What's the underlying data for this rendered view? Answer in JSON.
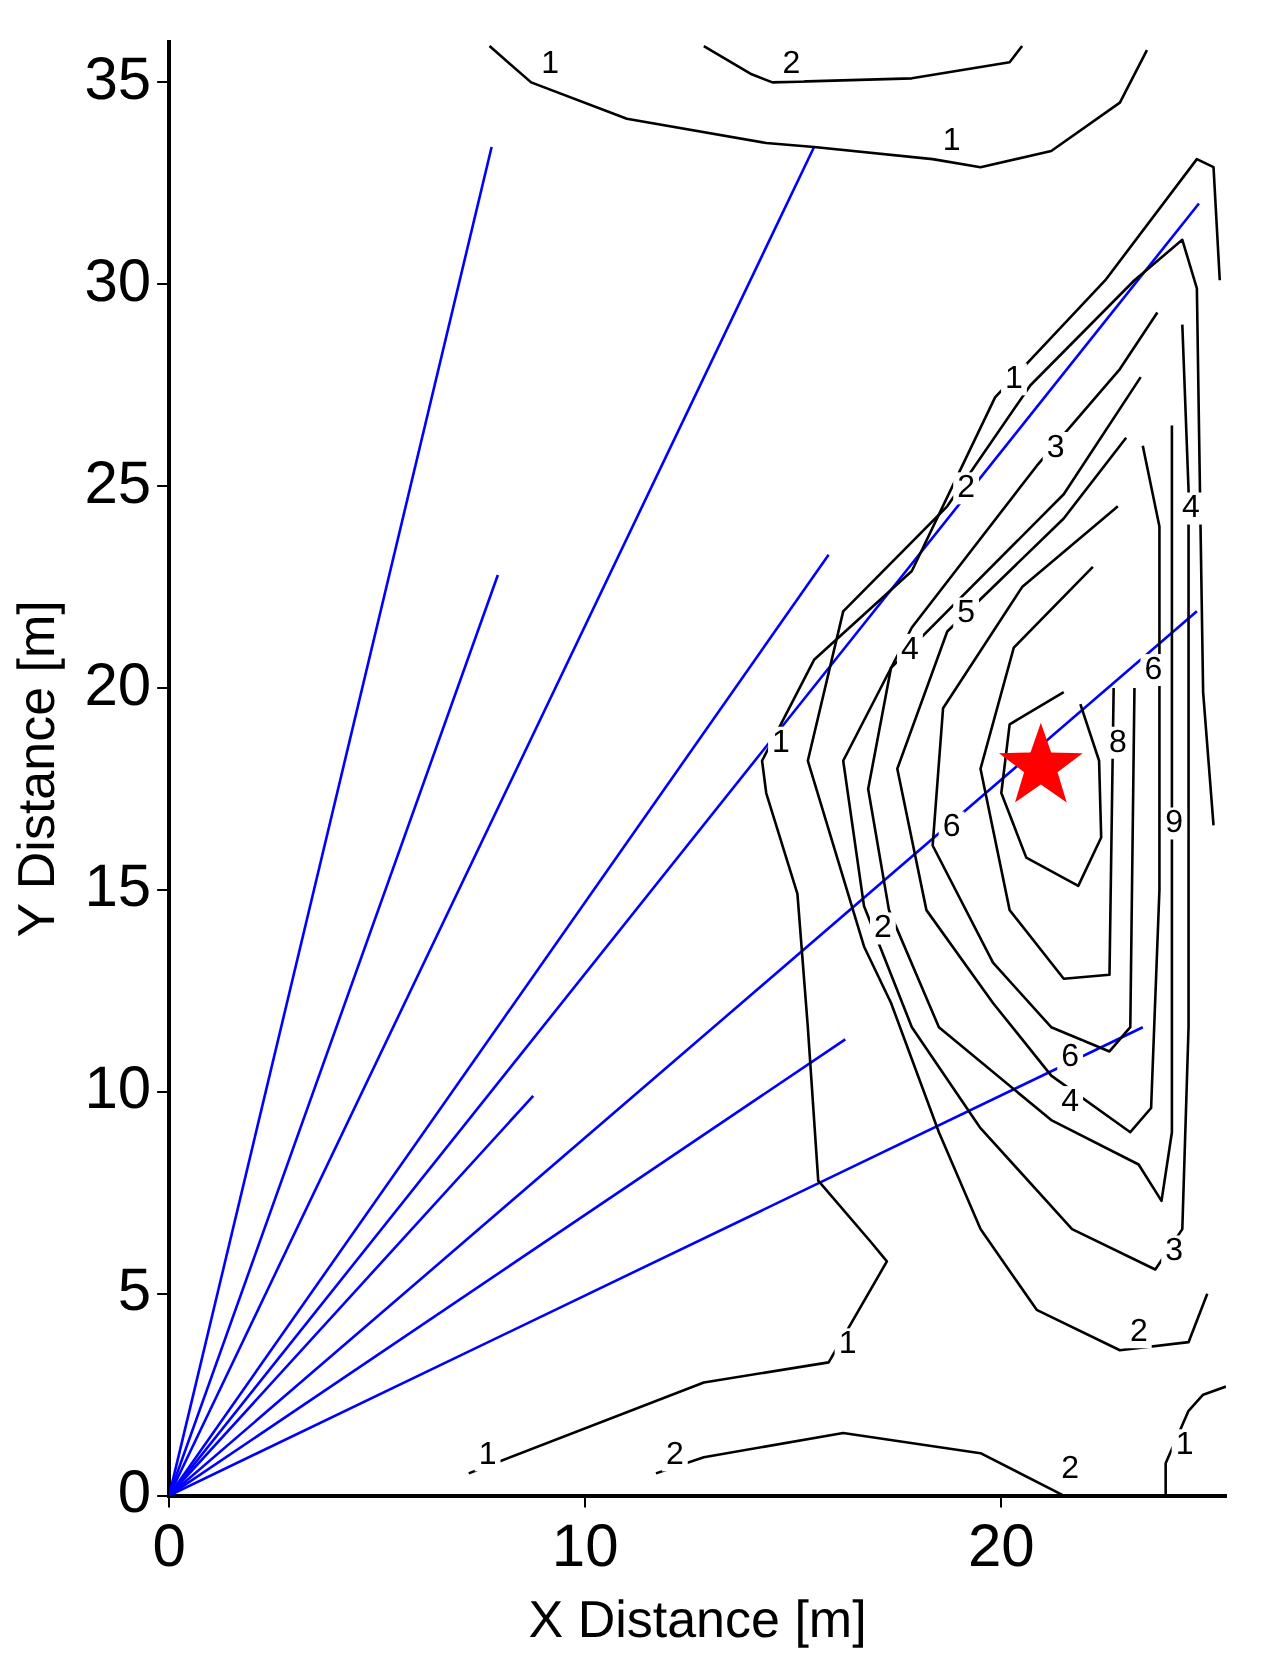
{
  "chart_data": {
    "type": "line",
    "xlabel": "X Distance [m]",
    "ylabel": "Y Distance [m]",
    "xlim": [
      0,
      25.4
    ],
    "ylim": [
      0,
      36
    ],
    "xticks": [
      0,
      10,
      20
    ],
    "yticks": [
      0,
      5,
      10,
      15,
      20,
      25,
      30,
      35
    ],
    "grid": false,
    "legend": false,
    "marker": "none",
    "series": [
      {
        "color": "#000000",
        "x": [
          7.2,
          12.85,
          15.85,
          17.25,
          16.85,
          15.6,
          15.35,
          15.1,
          14.35,
          14.25,
          15.5,
          17.85,
          19.85,
          22.5,
          24.7,
          25.1,
          25.25
        ],
        "values": [
          0.55,
          2.8,
          3.3,
          5.8,
          6.3,
          7.8,
          11.6,
          14.9,
          17.4,
          18.2,
          20.7,
          22.9,
          27.2,
          30.1,
          33.1,
          32.9,
          30.1
        ]
      },
      {
        "color": "#000000",
        "x": [
          23.95,
          23.95,
          24.5,
          24.85,
          25.4
        ],
        "values": [
          0,
          0.8,
          2.1,
          2.5,
          2.7
        ]
      },
      {
        "color": "#000000",
        "x": [
          7.7,
          8.7,
          11,
          14.35,
          15.5,
          18.35,
          19.5,
          21.2,
          22.85,
          23.5
        ],
        "values": [
          35.9,
          35,
          34.1,
          33.5,
          33.4,
          33.1,
          32.9,
          33.3,
          34.5,
          35.8
        ]
      },
      {
        "color": "#000000",
        "x": [
          12.85,
          14,
          14.5,
          17.85,
          20.2,
          20.5
        ],
        "values": [
          35.9,
          35.2,
          35,
          35.1,
          35.5,
          35.9
        ]
      },
      {
        "color": "#000000",
        "x": [
          11.7,
          12.85,
          16.2,
          19.5,
          21.5
        ],
        "values": [
          0.55,
          0.95,
          1.55,
          1.05,
          0
        ]
      },
      {
        "color": "#000000",
        "x": [
          25.1,
          24.85,
          24.75,
          24.7,
          24.35,
          23.2,
          20.7,
          18.7,
          16.2,
          15.35,
          16.7,
          17.35,
          18.5,
          19.5,
          20.85,
          22.85,
          24.5,
          24.95
        ],
        "values": [
          16.6,
          19.9,
          26.5,
          29.9,
          31.1,
          30.1,
          27.5,
          24.5,
          21.9,
          18.2,
          13.6,
          12.2,
          9,
          6.6,
          4.6,
          3.6,
          3.8,
          5
        ]
      },
      {
        "color": "#000000",
        "x": [
          23.75,
          22.85,
          20.85,
          17.85,
          16.2,
          16.7,
          17.85,
          19.5,
          21.7,
          23.7,
          24.35,
          24.5,
          24.5,
          24.35
        ],
        "values": [
          29.3,
          27.9,
          25.5,
          21.5,
          18.2,
          14.6,
          11.6,
          9.1,
          6.6,
          5.6,
          6.6,
          11.6,
          24.9,
          29
        ]
      },
      {
        "color": "#000000",
        "x": [
          23.35,
          21.5,
          17.35,
          16.8,
          17.3,
          18.5,
          21.2,
          23.3,
          23.85,
          24.1,
          24.1
        ],
        "values": [
          27.7,
          24.8,
          20.5,
          17.5,
          14.5,
          11.6,
          9.3,
          8.2,
          7.3,
          9,
          26.5
        ]
      },
      {
        "color": "#000000",
        "x": [
          23,
          21.5,
          18.7,
          17.5,
          18.2,
          19.8,
          21.2,
          23.1,
          23.6,
          23.8,
          23.8,
          23.4
        ],
        "values": [
          26.2,
          24.2,
          21.4,
          18,
          14.5,
          12.2,
          10.4,
          9,
          9.6,
          15,
          24,
          26
        ]
      },
      {
        "color": "#000000",
        "x": [
          22.8,
          20.5,
          18.6,
          18.35,
          19.8,
          21.2,
          22.6,
          23.1,
          23.2
        ],
        "values": [
          24.5,
          22.5,
          19.5,
          16.1,
          13.2,
          11.6,
          11,
          11.6,
          20
        ]
      },
      {
        "color": "#000000",
        "x": [
          22.2,
          20.3,
          19.5,
          20.2,
          21.5,
          22.6,
          22.7
        ],
        "values": [
          23,
          21,
          18,
          14.5,
          12.8,
          12.9,
          20
        ]
      },
      {
        "color": "#000000",
        "x": [
          21.5,
          20.2,
          20,
          20.6,
          21.85,
          22.4,
          22.35,
          21.9
        ],
        "values": [
          19.9,
          19.1,
          17.4,
          15.8,
          15.1,
          16.3,
          18.2,
          19.6
        ]
      },
      {
        "color": "#0000ff",
        "x": [
          0,
          7.75
        ],
        "values": [
          0,
          33.4
        ]
      },
      {
        "color": "#0000ff",
        "x": [
          0,
          7.9
        ],
        "values": [
          0,
          22.8
        ]
      },
      {
        "color": "#0000ff",
        "x": [
          0,
          15.5
        ],
        "values": [
          0,
          33.4
        ]
      },
      {
        "color": "#0000ff",
        "x": [
          0,
          15.85
        ],
        "values": [
          0,
          23.3
        ]
      },
      {
        "color": "#0000ff",
        "x": [
          0,
          24.75
        ],
        "values": [
          0,
          32
        ]
      },
      {
        "color": "#0000ff",
        "x": [
          0,
          24.7
        ],
        "values": [
          0,
          21.9
        ]
      },
      {
        "color": "#0000ff",
        "x": [
          0,
          8.75
        ],
        "values": [
          0,
          9.9
        ]
      },
      {
        "color": "#0000ff",
        "x": [
          0,
          16.25
        ],
        "values": [
          0,
          11.3
        ]
      },
      {
        "color": "#0000ff",
        "x": [
          0,
          23.4
        ],
        "values": [
          0,
          11.6
        ]
      },
      {
        "type": "scatter",
        "marker": "star",
        "color": "#ff0000",
        "x": [
          20.95
        ],
        "values": [
          18.05
        ]
      }
    ],
    "annotations": [
      {
        "text": "1",
        "x": 7.2,
        "y": 0.55
      },
      {
        "text": "2",
        "x": 11.7,
        "y": 0.55
      },
      {
        "text": "2",
        "x": 21.2,
        "y": 0.2
      },
      {
        "text": "1",
        "x": 8.7,
        "y": 35
      },
      {
        "text": "2",
        "x": 14.5,
        "y": 35
      },
      {
        "text": "1",
        "x": 18.35,
        "y": 33.1
      },
      {
        "text": "1",
        "x": 23.95,
        "y": 0.8
      },
      {
        "text": "1",
        "x": 15.85,
        "y": 3.3
      },
      {
        "text": "2",
        "x": 22.85,
        "y": 3.6
      },
      {
        "text": "3",
        "x": 23.7,
        "y": 5.6
      },
      {
        "text": "4",
        "x": 21.2,
        "y": 9.3
      },
      {
        "text": "6",
        "x": 21.2,
        "y": 10.4
      },
      {
        "text": "2",
        "x": 16.7,
        "y": 13.6
      },
      {
        "text": "6",
        "x": 18.35,
        "y": 16.1
      },
      {
        "text": "1",
        "x": 14.25,
        "y": 18.2
      },
      {
        "text": "4",
        "x": 17.35,
        "y": 20.5
      },
      {
        "text": "5",
        "x": 18.7,
        "y": 21.4
      },
      {
        "text": "2",
        "x": 18.7,
        "y": 24.5
      },
      {
        "text": "3",
        "x": 20.85,
        "y": 25.5
      },
      {
        "text": "1",
        "x": 19.85,
        "y": 27.2
      },
      {
        "text": "8",
        "x": 22.35,
        "y": 18.2
      },
      {
        "text": "9",
        "x": 23.7,
        "y": 16.2
      },
      {
        "text": "6",
        "x": 23.2,
        "y": 20
      },
      {
        "text": "4",
        "x": 24.1,
        "y": 24
      }
    ]
  }
}
